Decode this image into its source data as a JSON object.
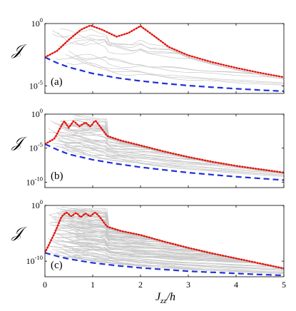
{
  "figure": {
    "y_label": "𝒥",
    "x_label_main": "J",
    "x_label_sub": "zz",
    "x_label_tail": "/h"
  },
  "colors": {
    "envelope_max": "#e3120b",
    "envelope_min": "#1f2fd9",
    "background_curves": "#c8c8c8",
    "axes": "#000000"
  },
  "chart_data": [
    {
      "type": "line",
      "panel": "(a)",
      "xlim": [
        0,
        5
      ],
      "ylim_log10": [
        -5.6,
        0
      ],
      "y_scale": "log",
      "y_ticks": [
        {
          "base": "10",
          "exp": "0",
          "value": 0
        },
        {
          "base": "10",
          "exp": "-5",
          "value": -5
        }
      ],
      "x_ticks": [],
      "label_text": "(a)",
      "background_count": 12,
      "series": [
        {
          "role": "max",
          "style": "dotted",
          "x": [
            0,
            0.25,
            0.5,
            0.75,
            0.95,
            1.2,
            1.5,
            1.75,
            2.0,
            2.25,
            2.6,
            3.0,
            3.5,
            4.0,
            4.5,
            5.0
          ],
          "log10_y": [
            -2.7,
            -2.2,
            -1.3,
            -0.5,
            -0.15,
            -0.5,
            -1.05,
            -0.75,
            -0.2,
            -0.9,
            -1.9,
            -2.55,
            -3.1,
            -3.55,
            -3.95,
            -4.3
          ]
        },
        {
          "role": "min",
          "style": "dashed",
          "x": [
            0,
            0.25,
            0.5,
            1.0,
            1.5,
            2.0,
            2.5,
            3.0,
            3.5,
            4.0,
            4.5,
            5.0
          ],
          "log10_y": [
            -2.7,
            -3.15,
            -3.5,
            -4.0,
            -4.35,
            -4.6,
            -4.8,
            -4.97,
            -5.1,
            -5.22,
            -5.33,
            -5.42
          ]
        }
      ]
    },
    {
      "type": "line",
      "panel": "(b)",
      "xlim": [
        0,
        5
      ],
      "ylim_log10": [
        -10.8,
        0
      ],
      "y_scale": "log",
      "y_ticks": [
        {
          "base": "10",
          "exp": "0",
          "value": 0
        },
        {
          "base": "10",
          "exp": "-5",
          "value": -5
        },
        {
          "base": "10",
          "exp": "-10",
          "value": -10
        }
      ],
      "x_ticks": [],
      "label_text": "(b)",
      "background_count": 45,
      "series": [
        {
          "role": "max",
          "style": "dotted",
          "x": [
            0,
            0.2,
            0.4,
            0.5,
            0.6,
            0.72,
            0.85,
            0.95,
            1.05,
            1.15,
            1.3,
            1.6,
            2.0,
            2.5,
            3.0,
            3.5,
            4.0,
            4.5,
            5.0
          ],
          "log10_y": [
            -4.4,
            -3.6,
            -1.0,
            -2.0,
            -1.0,
            -1.8,
            -1.2,
            -1.9,
            -0.9,
            -1.8,
            -3.2,
            -3.9,
            -4.6,
            -5.5,
            -6.3,
            -7.0,
            -7.6,
            -8.1,
            -8.6
          ]
        },
        {
          "role": "min",
          "style": "dashed",
          "x": [
            0,
            0.25,
            0.5,
            1.0,
            1.5,
            2.0,
            2.5,
            3.0,
            3.5,
            4.0,
            4.5,
            5.0
          ],
          "log10_y": [
            -4.4,
            -5.2,
            -5.9,
            -6.7,
            -7.3,
            -7.8,
            -8.2,
            -8.6,
            -8.9,
            -9.2,
            -9.45,
            -9.7
          ]
        }
      ]
    },
    {
      "type": "line",
      "panel": "(c)",
      "xlim": [
        0,
        5
      ],
      "ylim_log10": [
        -12.8,
        0
      ],
      "y_scale": "log",
      "y_ticks": [
        {
          "base": "10",
          "exp": "0",
          "value": 0
        },
        {
          "base": "10",
          "exp": "-10",
          "value": -10
        }
      ],
      "x_ticks": [
        "0",
        "1",
        "2",
        "3",
        "4",
        "5"
      ],
      "label_text": "(c)",
      "background_count": 100,
      "series": [
        {
          "role": "max",
          "style": "dotted",
          "x": [
            0,
            0.2,
            0.35,
            0.45,
            0.55,
            0.65,
            0.75,
            0.85,
            0.95,
            1.05,
            1.15,
            1.3,
            1.6,
            2.0,
            2.5,
            3.0,
            3.5,
            4.0,
            4.5,
            5.0
          ],
          "log10_y": [
            -8.5,
            -5.0,
            -2.0,
            -1.2,
            -2.0,
            -1.3,
            -2.1,
            -1.4,
            -2.0,
            -1.2,
            -2.1,
            -3.8,
            -4.6,
            -5.3,
            -6.5,
            -7.6,
            -8.6,
            -9.5,
            -10.4,
            -11.3
          ]
        },
        {
          "role": "min",
          "style": "dashed",
          "x": [
            0,
            0.25,
            0.5,
            1.0,
            1.5,
            2.0,
            2.5,
            3.0,
            3.5,
            4.0,
            4.5,
            5.0
          ],
          "log10_y": [
            -8.5,
            -9.1,
            -9.6,
            -10.3,
            -10.8,
            -11.2,
            -11.5,
            -11.8,
            -12.0,
            -12.2,
            -12.4,
            -12.55
          ]
        }
      ]
    }
  ]
}
